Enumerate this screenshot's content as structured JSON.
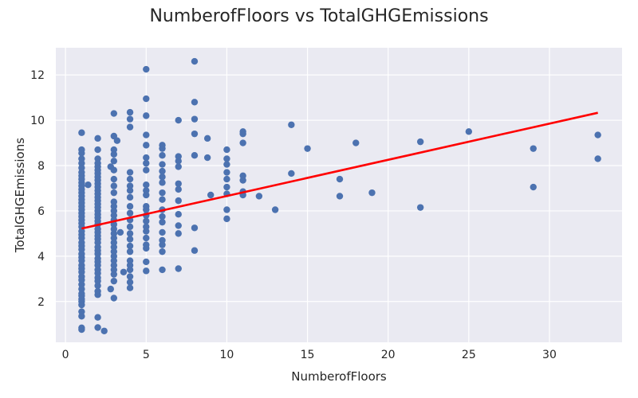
{
  "chart_data": {
    "type": "scatter",
    "title": "NumberofFloors vs TotalGHGEmissions",
    "xlabel": "NumberofFloors",
    "ylabel": "TotalGHGEmissions",
    "xlim": [
      -0.6,
      34.5
    ],
    "ylim": [
      0.2,
      13.2
    ],
    "xticks": [
      0,
      5,
      10,
      15,
      20,
      25,
      30
    ],
    "yticks": [
      2,
      4,
      6,
      8,
      10,
      12
    ],
    "grid": true,
    "background_color": "#eaeaf2",
    "point_color": "#4c72b0",
    "trend_color": "#ff0000",
    "trend_line": {
      "x": [
        1,
        33
      ],
      "y": [
        5.22,
        10.33
      ]
    },
    "points": [
      [
        1,
        0.76
      ],
      [
        1,
        0.84
      ],
      [
        1,
        1.35
      ],
      [
        1,
        1.55
      ],
      [
        1,
        1.85
      ],
      [
        1,
        2.0
      ],
      [
        1,
        2.1
      ],
      [
        1,
        2.25
      ],
      [
        1,
        2.35
      ],
      [
        1,
        2.55
      ],
      [
        1,
        2.75
      ],
      [
        1,
        2.95
      ],
      [
        1,
        3.1
      ],
      [
        1,
        3.3
      ],
      [
        1,
        3.45
      ],
      [
        1,
        3.6
      ],
      [
        1,
        3.8
      ],
      [
        1,
        3.95
      ],
      [
        1,
        4.1
      ],
      [
        1,
        4.3
      ],
      [
        1,
        4.45
      ],
      [
        1,
        4.6
      ],
      [
        1,
        4.8
      ],
      [
        1,
        4.95
      ],
      [
        1,
        5.1
      ],
      [
        1,
        5.3
      ],
      [
        1,
        5.45
      ],
      [
        1,
        5.6
      ],
      [
        1,
        5.75
      ],
      [
        1,
        5.9
      ],
      [
        1,
        6.05
      ],
      [
        1,
        6.2
      ],
      [
        1,
        6.35
      ],
      [
        1,
        6.5
      ],
      [
        1,
        6.65
      ],
      [
        1,
        6.8
      ],
      [
        1,
        6.95
      ],
      [
        1,
        7.1
      ],
      [
        1,
        7.25
      ],
      [
        1,
        7.4
      ],
      [
        1,
        7.55
      ],
      [
        1,
        7.7
      ],
      [
        1,
        7.9
      ],
      [
        1,
        8.1
      ],
      [
        1,
        8.3
      ],
      [
        1,
        8.55
      ],
      [
        1,
        8.7
      ],
      [
        1,
        9.45
      ],
      [
        1.4,
        7.15
      ],
      [
        2,
        0.85
      ],
      [
        2,
        1.3
      ],
      [
        2,
        2.3
      ],
      [
        2,
        2.45
      ],
      [
        2,
        2.7
      ],
      [
        2,
        2.9
      ],
      [
        2,
        3.05
      ],
      [
        2,
        3.25
      ],
      [
        2,
        3.4
      ],
      [
        2,
        3.6
      ],
      [
        2,
        3.75
      ],
      [
        2,
        3.9
      ],
      [
        2,
        4.1
      ],
      [
        2,
        4.25
      ],
      [
        2,
        4.4
      ],
      [
        2,
        4.6
      ],
      [
        2,
        4.75
      ],
      [
        2,
        4.9
      ],
      [
        2,
        5.05
      ],
      [
        2,
        5.2
      ],
      [
        2,
        5.4
      ],
      [
        2,
        5.55
      ],
      [
        2,
        5.7
      ],
      [
        2,
        5.85
      ],
      [
        2,
        6.0
      ],
      [
        2,
        6.15
      ],
      [
        2,
        6.3
      ],
      [
        2,
        6.45
      ],
      [
        2,
        6.6
      ],
      [
        2,
        6.75
      ],
      [
        2,
        6.9
      ],
      [
        2,
        7.05
      ],
      [
        2,
        7.2
      ],
      [
        2,
        7.35
      ],
      [
        2,
        7.5
      ],
      [
        2,
        7.65
      ],
      [
        2,
        7.8
      ],
      [
        2,
        7.95
      ],
      [
        2,
        8.1
      ],
      [
        2,
        8.3
      ],
      [
        2,
        8.7
      ],
      [
        2,
        9.2
      ],
      [
        2.4,
        0.7
      ],
      [
        2.8,
        2.55
      ],
      [
        2.8,
        7.95
      ],
      [
        3,
        2.15
      ],
      [
        3,
        2.9
      ],
      [
        3,
        3.2
      ],
      [
        3,
        3.4
      ],
      [
        3,
        3.6
      ],
      [
        3,
        3.8
      ],
      [
        3,
        4.0
      ],
      [
        3,
        4.2
      ],
      [
        3,
        4.4
      ],
      [
        3,
        4.6
      ],
      [
        3,
        4.8
      ],
      [
        3,
        5.0
      ],
      [
        3,
        5.2
      ],
      [
        3,
        5.4
      ],
      [
        3,
        5.6
      ],
      [
        3,
        5.8
      ],
      [
        3,
        6.0
      ],
      [
        3,
        6.2
      ],
      [
        3,
        6.4
      ],
      [
        3,
        6.8
      ],
      [
        3,
        7.1
      ],
      [
        3,
        7.4
      ],
      [
        3,
        7.8
      ],
      [
        3,
        8.2
      ],
      [
        3,
        8.5
      ],
      [
        3,
        8.7
      ],
      [
        3,
        9.3
      ],
      [
        3,
        10.3
      ],
      [
        3.2,
        9.1
      ],
      [
        3.4,
        5.05
      ],
      [
        3.6,
        3.3
      ],
      [
        4,
        2.6
      ],
      [
        4,
        2.85
      ],
      [
        4,
        3.1
      ],
      [
        4,
        3.4
      ],
      [
        4,
        3.6
      ],
      [
        4,
        3.8
      ],
      [
        4,
        4.2
      ],
      [
        4,
        4.45
      ],
      [
        4,
        4.75
      ],
      [
        4,
        5.0
      ],
      [
        4,
        5.3
      ],
      [
        4,
        5.6
      ],
      [
        4,
        5.9
      ],
      [
        4,
        6.2
      ],
      [
        4,
        6.6
      ],
      [
        4,
        6.9
      ],
      [
        4,
        7.1
      ],
      [
        4,
        7.4
      ],
      [
        4,
        7.7
      ],
      [
        4,
        9.7
      ],
      [
        4,
        10.05
      ],
      [
        4,
        10.35
      ],
      [
        5,
        3.35
      ],
      [
        5,
        3.75
      ],
      [
        5,
        4.35
      ],
      [
        5,
        4.5
      ],
      [
        5,
        4.8
      ],
      [
        5,
        5.1
      ],
      [
        5,
        5.3
      ],
      [
        5,
        5.55
      ],
      [
        5,
        5.8
      ],
      [
        5,
        6.05
      ],
      [
        5,
        6.2
      ],
      [
        5,
        6.7
      ],
      [
        5,
        6.9
      ],
      [
        5,
        7.15
      ],
      [
        5,
        7.8
      ],
      [
        5,
        8.1
      ],
      [
        5,
        8.35
      ],
      [
        5,
        8.9
      ],
      [
        5,
        9.35
      ],
      [
        5,
        10.2
      ],
      [
        5,
        10.95
      ],
      [
        5,
        12.25
      ],
      [
        6,
        3.4
      ],
      [
        6,
        4.2
      ],
      [
        6,
        4.5
      ],
      [
        6,
        4.7
      ],
      [
        6,
        5.05
      ],
      [
        6,
        5.5
      ],
      [
        6,
        5.75
      ],
      [
        6,
        6.05
      ],
      [
        6,
        6.5
      ],
      [
        6,
        6.8
      ],
      [
        6,
        7.25
      ],
      [
        6,
        7.5
      ],
      [
        6,
        7.75
      ],
      [
        6,
        8.05
      ],
      [
        6,
        8.45
      ],
      [
        6,
        8.75
      ],
      [
        6,
        8.9
      ],
      [
        7,
        3.45
      ],
      [
        7,
        5.0
      ],
      [
        7,
        5.35
      ],
      [
        7,
        5.85
      ],
      [
        7,
        6.45
      ],
      [
        7,
        6.95
      ],
      [
        7,
        7.2
      ],
      [
        7,
        7.95
      ],
      [
        7,
        8.2
      ],
      [
        7,
        8.4
      ],
      [
        7,
        10.0
      ],
      [
        8,
        4.25
      ],
      [
        8,
        5.25
      ],
      [
        8,
        8.45
      ],
      [
        8,
        9.4
      ],
      [
        8,
        10.05
      ],
      [
        8,
        10.8
      ],
      [
        8,
        12.6
      ],
      [
        8.8,
        8.35
      ],
      [
        8.8,
        9.2
      ],
      [
        9,
        6.7
      ],
      [
        10,
        5.65
      ],
      [
        10,
        6.05
      ],
      [
        10,
        6.75
      ],
      [
        10,
        7.05
      ],
      [
        10,
        7.4
      ],
      [
        10,
        7.7
      ],
      [
        10,
        8.05
      ],
      [
        10,
        8.3
      ],
      [
        10,
        8.7
      ],
      [
        11,
        6.7
      ],
      [
        11,
        6.85
      ],
      [
        11,
        7.35
      ],
      [
        11,
        7.55
      ],
      [
        11,
        9.0
      ],
      [
        11,
        9.4
      ],
      [
        11,
        9.5
      ],
      [
        12,
        6.65
      ],
      [
        13,
        6.05
      ],
      [
        14,
        7.65
      ],
      [
        14,
        9.8
      ],
      [
        15,
        8.75
      ],
      [
        17,
        6.65
      ],
      [
        17,
        7.4
      ],
      [
        18,
        9.0
      ],
      [
        19,
        6.8
      ],
      [
        22,
        6.15
      ],
      [
        22,
        9.05
      ],
      [
        25,
        9.5
      ],
      [
        29,
        7.05
      ],
      [
        29,
        8.75
      ],
      [
        33,
        8.3
      ],
      [
        33,
        9.35
      ]
    ]
  }
}
